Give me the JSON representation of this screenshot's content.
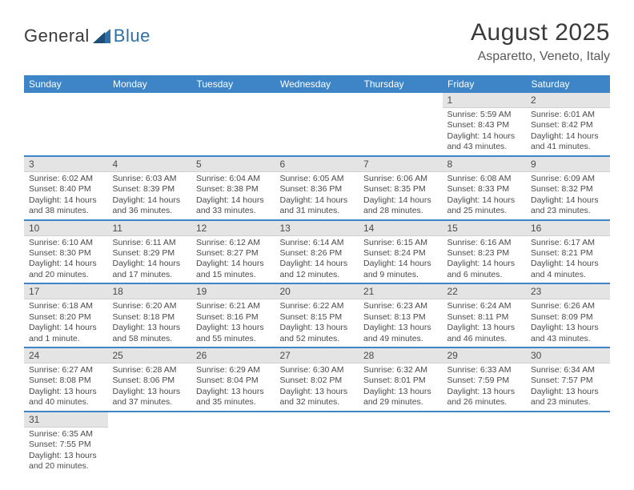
{
  "logo": {
    "text1": "General",
    "text2": "Blue",
    "text1_color": "#3a3a3a",
    "text2_color": "#2f6fa7"
  },
  "title": "August 2025",
  "subtitle": "Asparetto, Veneto, Italy",
  "colors": {
    "header_bg": "#3d85c6",
    "header_text": "#ffffff",
    "daynum_bg": "#e4e4e4",
    "row_divider": "#3d85c6",
    "body_text": "#4a4a4a",
    "page_bg": "#ffffff"
  },
  "weekdays": [
    "Sunday",
    "Monday",
    "Tuesday",
    "Wednesday",
    "Thursday",
    "Friday",
    "Saturday"
  ],
  "weeks": [
    [
      null,
      null,
      null,
      null,
      null,
      {
        "n": "1",
        "sunrise": "Sunrise: 5:59 AM",
        "sunset": "Sunset: 8:43 PM",
        "daylight": "Daylight: 14 hours and 43 minutes."
      },
      {
        "n": "2",
        "sunrise": "Sunrise: 6:01 AM",
        "sunset": "Sunset: 8:42 PM",
        "daylight": "Daylight: 14 hours and 41 minutes."
      }
    ],
    [
      {
        "n": "3",
        "sunrise": "Sunrise: 6:02 AM",
        "sunset": "Sunset: 8:40 PM",
        "daylight": "Daylight: 14 hours and 38 minutes."
      },
      {
        "n": "4",
        "sunrise": "Sunrise: 6:03 AM",
        "sunset": "Sunset: 8:39 PM",
        "daylight": "Daylight: 14 hours and 36 minutes."
      },
      {
        "n": "5",
        "sunrise": "Sunrise: 6:04 AM",
        "sunset": "Sunset: 8:38 PM",
        "daylight": "Daylight: 14 hours and 33 minutes."
      },
      {
        "n": "6",
        "sunrise": "Sunrise: 6:05 AM",
        "sunset": "Sunset: 8:36 PM",
        "daylight": "Daylight: 14 hours and 31 minutes."
      },
      {
        "n": "7",
        "sunrise": "Sunrise: 6:06 AM",
        "sunset": "Sunset: 8:35 PM",
        "daylight": "Daylight: 14 hours and 28 minutes."
      },
      {
        "n": "8",
        "sunrise": "Sunrise: 6:08 AM",
        "sunset": "Sunset: 8:33 PM",
        "daylight": "Daylight: 14 hours and 25 minutes."
      },
      {
        "n": "9",
        "sunrise": "Sunrise: 6:09 AM",
        "sunset": "Sunset: 8:32 PM",
        "daylight": "Daylight: 14 hours and 23 minutes."
      }
    ],
    [
      {
        "n": "10",
        "sunrise": "Sunrise: 6:10 AM",
        "sunset": "Sunset: 8:30 PM",
        "daylight": "Daylight: 14 hours and 20 minutes."
      },
      {
        "n": "11",
        "sunrise": "Sunrise: 6:11 AM",
        "sunset": "Sunset: 8:29 PM",
        "daylight": "Daylight: 14 hours and 17 minutes."
      },
      {
        "n": "12",
        "sunrise": "Sunrise: 6:12 AM",
        "sunset": "Sunset: 8:27 PM",
        "daylight": "Daylight: 14 hours and 15 minutes."
      },
      {
        "n": "13",
        "sunrise": "Sunrise: 6:14 AM",
        "sunset": "Sunset: 8:26 PM",
        "daylight": "Daylight: 14 hours and 12 minutes."
      },
      {
        "n": "14",
        "sunrise": "Sunrise: 6:15 AM",
        "sunset": "Sunset: 8:24 PM",
        "daylight": "Daylight: 14 hours and 9 minutes."
      },
      {
        "n": "15",
        "sunrise": "Sunrise: 6:16 AM",
        "sunset": "Sunset: 8:23 PM",
        "daylight": "Daylight: 14 hours and 6 minutes."
      },
      {
        "n": "16",
        "sunrise": "Sunrise: 6:17 AM",
        "sunset": "Sunset: 8:21 PM",
        "daylight": "Daylight: 14 hours and 4 minutes."
      }
    ],
    [
      {
        "n": "17",
        "sunrise": "Sunrise: 6:18 AM",
        "sunset": "Sunset: 8:20 PM",
        "daylight": "Daylight: 14 hours and 1 minute."
      },
      {
        "n": "18",
        "sunrise": "Sunrise: 6:20 AM",
        "sunset": "Sunset: 8:18 PM",
        "daylight": "Daylight: 13 hours and 58 minutes."
      },
      {
        "n": "19",
        "sunrise": "Sunrise: 6:21 AM",
        "sunset": "Sunset: 8:16 PM",
        "daylight": "Daylight: 13 hours and 55 minutes."
      },
      {
        "n": "20",
        "sunrise": "Sunrise: 6:22 AM",
        "sunset": "Sunset: 8:15 PM",
        "daylight": "Daylight: 13 hours and 52 minutes."
      },
      {
        "n": "21",
        "sunrise": "Sunrise: 6:23 AM",
        "sunset": "Sunset: 8:13 PM",
        "daylight": "Daylight: 13 hours and 49 minutes."
      },
      {
        "n": "22",
        "sunrise": "Sunrise: 6:24 AM",
        "sunset": "Sunset: 8:11 PM",
        "daylight": "Daylight: 13 hours and 46 minutes."
      },
      {
        "n": "23",
        "sunrise": "Sunrise: 6:26 AM",
        "sunset": "Sunset: 8:09 PM",
        "daylight": "Daylight: 13 hours and 43 minutes."
      }
    ],
    [
      {
        "n": "24",
        "sunrise": "Sunrise: 6:27 AM",
        "sunset": "Sunset: 8:08 PM",
        "daylight": "Daylight: 13 hours and 40 minutes."
      },
      {
        "n": "25",
        "sunrise": "Sunrise: 6:28 AM",
        "sunset": "Sunset: 8:06 PM",
        "daylight": "Daylight: 13 hours and 37 minutes."
      },
      {
        "n": "26",
        "sunrise": "Sunrise: 6:29 AM",
        "sunset": "Sunset: 8:04 PM",
        "daylight": "Daylight: 13 hours and 35 minutes."
      },
      {
        "n": "27",
        "sunrise": "Sunrise: 6:30 AM",
        "sunset": "Sunset: 8:02 PM",
        "daylight": "Daylight: 13 hours and 32 minutes."
      },
      {
        "n": "28",
        "sunrise": "Sunrise: 6:32 AM",
        "sunset": "Sunset: 8:01 PM",
        "daylight": "Daylight: 13 hours and 29 minutes."
      },
      {
        "n": "29",
        "sunrise": "Sunrise: 6:33 AM",
        "sunset": "Sunset: 7:59 PM",
        "daylight": "Daylight: 13 hours and 26 minutes."
      },
      {
        "n": "30",
        "sunrise": "Sunrise: 6:34 AM",
        "sunset": "Sunset: 7:57 PM",
        "daylight": "Daylight: 13 hours and 23 minutes."
      }
    ],
    [
      {
        "n": "31",
        "sunrise": "Sunrise: 6:35 AM",
        "sunset": "Sunset: 7:55 PM",
        "daylight": "Daylight: 13 hours and 20 minutes."
      },
      null,
      null,
      null,
      null,
      null,
      null
    ]
  ]
}
